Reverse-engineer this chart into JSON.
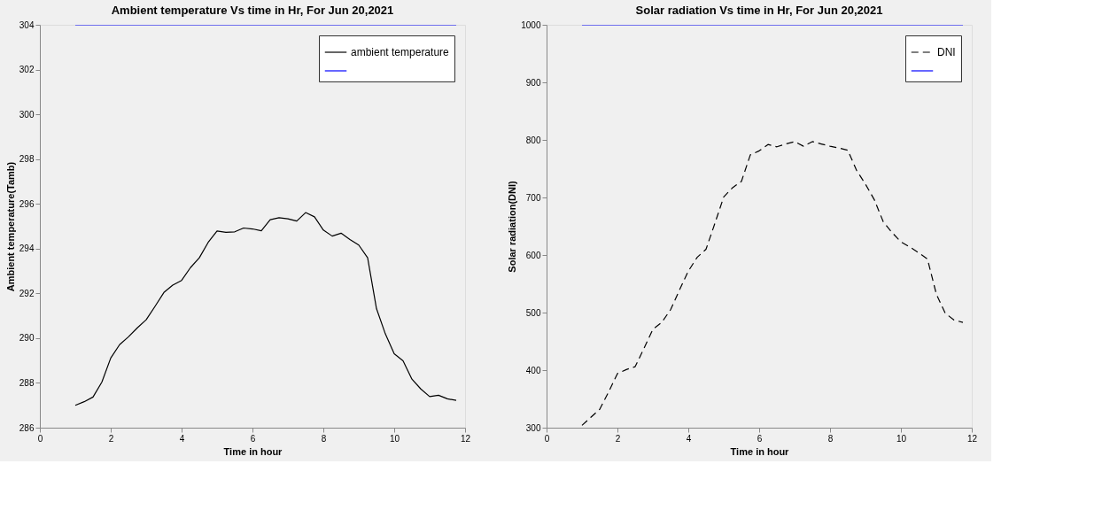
{
  "chart_data": [
    {
      "type": "line",
      "title": "Ambient temperature Vs time in Hr, For Jun 20,2021",
      "xlabel": "Time in hour",
      "ylabel": "Ambient temperature(Tamb)",
      "x": [
        1,
        1.25,
        1.5,
        1.75,
        2,
        2.25,
        2.5,
        2.75,
        3,
        3.25,
        3.5,
        3.75,
        4,
        4.25,
        4.5,
        4.75,
        5,
        5.25,
        5.5,
        5.75,
        6,
        6.25,
        6.5,
        6.75,
        7,
        7.25,
        7.5,
        7.75,
        8,
        8.25,
        8.5,
        8.75,
        9,
        9.25,
        9.5,
        9.75,
        10,
        10.25,
        10.5,
        10.75,
        11,
        11.25,
        11.5,
        11.75
      ],
      "series": [
        {
          "name": "ambient temperature",
          "color": "#000000",
          "line_style": "solid",
          "values": [
            287.0,
            287.16,
            287.37,
            288.04,
            289.11,
            289.71,
            290.06,
            290.46,
            290.82,
            291.42,
            292.04,
            292.37,
            292.58,
            293.15,
            293.59,
            294.28,
            294.79,
            294.73,
            294.75,
            294.92,
            294.88,
            294.8,
            295.29,
            295.38,
            295.33,
            295.23,
            295.61,
            295.42,
            294.83,
            294.56,
            294.69,
            294.41,
            294.16,
            293.59,
            291.32,
            290.19,
            289.3,
            288.99,
            288.17,
            287.73,
            287.39,
            287.45,
            287.29,
            287.22
          ]
        },
        {
          "color": "#0000ff",
          "line_style": "solid",
          "values": [
            304,
            304,
            304,
            304,
            304,
            304,
            304,
            304,
            304,
            304,
            304,
            304,
            304,
            304,
            304,
            304,
            304,
            304,
            304,
            304,
            304,
            304,
            304,
            304,
            304,
            304,
            304,
            304,
            304,
            304,
            304,
            304,
            304,
            304,
            304,
            304,
            304,
            304,
            304,
            304,
            304,
            304,
            304,
            304
          ]
        }
      ],
      "xlim": [
        0,
        12
      ],
      "xticks": [
        0,
        2,
        4,
        6,
        8,
        10,
        12
      ],
      "ylim": [
        286,
        304
      ],
      "yticks": [
        286,
        288,
        290,
        292,
        294,
        296,
        298,
        300,
        302,
        304
      ],
      "grid": false,
      "legend": "top right",
      "marker": "none"
    },
    {
      "type": "line",
      "title": "Solar radiation Vs time in Hr, For Jun 20,2021",
      "xlabel": "Time in hour",
      "ylabel": "Solar radiation(DNI)",
      "x": [
        1,
        1.25,
        1.5,
        1.75,
        2,
        2.25,
        2.5,
        2.75,
        3,
        3.25,
        3.5,
        3.75,
        4,
        4.25,
        4.5,
        4.75,
        5,
        5.25,
        5.5,
        5.75,
        6,
        6.25,
        6.5,
        6.75,
        7,
        7.25,
        7.5,
        7.75,
        8,
        8.25,
        8.5,
        8.75,
        9,
        9.25,
        9.5,
        9.75,
        10,
        10.25,
        10.5,
        10.75,
        11,
        11.25,
        11.5,
        11.75
      ],
      "series": [
        {
          "name": "DNI",
          "color": "#000000",
          "line_style": "dashed",
          "values": [
            304,
            318,
            332,
            362,
            394,
            401,
            406,
            438,
            471,
            483,
            505,
            539,
            572,
            596,
            610,
            655,
            701,
            717,
            728,
            774,
            781,
            792,
            788,
            793,
            797,
            789,
            797,
            793,
            789,
            786,
            782,
            747,
            723,
            696,
            658,
            639,
            623,
            614,
            604,
            593,
            532,
            499,
            487,
            483
          ]
        },
        {
          "color": "#0000ff",
          "line_style": "solid",
          "values": [
            1000,
            1000,
            1000,
            1000,
            1000,
            1000,
            1000,
            1000,
            1000,
            1000,
            1000,
            1000,
            1000,
            1000,
            1000,
            1000,
            1000,
            1000,
            1000,
            1000,
            1000,
            1000,
            1000,
            1000,
            1000,
            1000,
            1000,
            1000,
            1000,
            1000,
            1000,
            1000,
            1000,
            1000,
            1000,
            1000,
            1000,
            1000,
            1000,
            1000,
            1000,
            1000,
            1000,
            1000
          ]
        }
      ],
      "xlim": [
        0,
        12
      ],
      "xticks": [
        0,
        2,
        4,
        6,
        8,
        10,
        12
      ],
      "ylim": [
        300,
        1000
      ],
      "yticks": [
        300,
        400,
        500,
        600,
        700,
        800,
        900,
        1000
      ],
      "grid": false,
      "legend": "top right",
      "marker": "none"
    }
  ]
}
